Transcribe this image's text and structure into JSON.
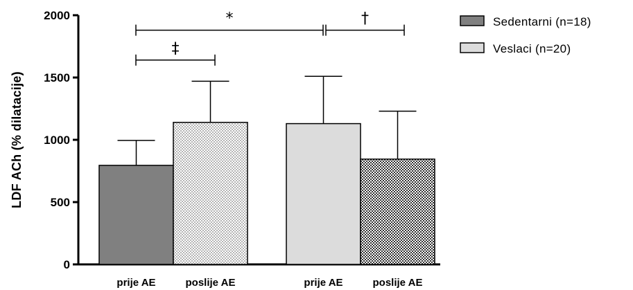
{
  "chart_data": {
    "type": "bar",
    "ylabel": "LDF ACh (% dilatacije)",
    "xlabel": "",
    "ylim": [
      0,
      2000
    ],
    "yticks": [
      0,
      500,
      1000,
      1500,
      2000
    ],
    "categories": [
      "prije AE",
      "poslije AE",
      "prije AE",
      "poslije AE"
    ],
    "bars": [
      {
        "group": "Sedentarni (n=18)",
        "category": "prije AE",
        "value": 795,
        "error": 200,
        "fill": "solid-dark"
      },
      {
        "group": "Sedentarni (n=18)",
        "category": "poslije AE",
        "value": 1140,
        "error": 330,
        "fill": "checker-light"
      },
      {
        "group": "Veslaci (n=20)",
        "category": "prije AE",
        "value": 1130,
        "error": 380,
        "fill": "solid-light"
      },
      {
        "group": "Veslaci (n=20)",
        "category": "poslije AE",
        "value": 845,
        "error": 385,
        "fill": "checker-dark"
      }
    ],
    "legend": [
      {
        "label": "Sedentarni (n=18)",
        "color": "#808080"
      },
      {
        "label": "Veslaci (n=20)",
        "color": "#dcdcdc"
      }
    ],
    "legend_position": "top-right",
    "grid": false,
    "significance": [
      {
        "symbol": "*",
        "from": 0,
        "to": 2,
        "value": 1880
      },
      {
        "symbol": "†",
        "from": 2,
        "to": 3,
        "value": 1880
      },
      {
        "symbol": "‡",
        "from": 0,
        "to": 1,
        "value": 1640
      }
    ]
  },
  "colors": {
    "dark_bar": "#808080",
    "light_bar": "#dcdcdc",
    "checker_light_a": "#ffffff",
    "checker_light_b": "#b4b4b4",
    "checker_dark_a": "#ffffff",
    "checker_dark_b": "#303030",
    "axis": "#000000"
  }
}
